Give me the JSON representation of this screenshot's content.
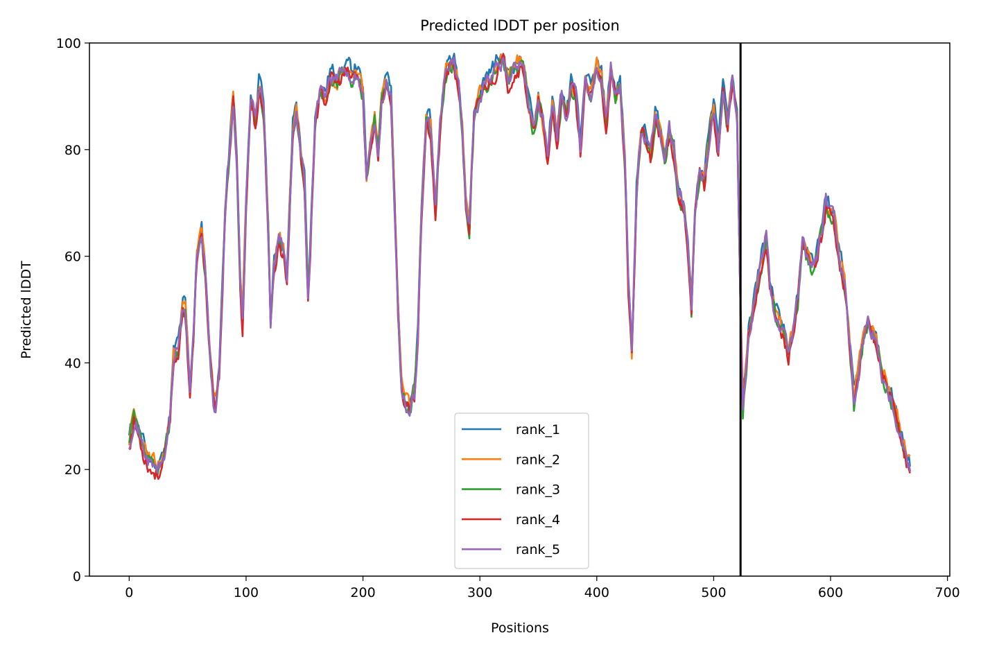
{
  "chart_data": {
    "type": "line",
    "title": "Predicted lDDT per position",
    "xlabel": "Positions",
    "ylabel": "Predicted lDDT",
    "xlim": [
      -34,
      702
    ],
    "ylim": [
      0,
      100
    ],
    "xticks": [
      0,
      100,
      200,
      300,
      400,
      500,
      600,
      700
    ],
    "yticks": [
      0,
      20,
      40,
      60,
      80,
      100
    ],
    "grid": false,
    "legend_position": "lower center",
    "vline_x": 523,
    "x_max": 668,
    "base_profile": [
      [
        0,
        25
      ],
      [
        4,
        30
      ],
      [
        8,
        27
      ],
      [
        12,
        24
      ],
      [
        18,
        21
      ],
      [
        24,
        20
      ],
      [
        30,
        22
      ],
      [
        35,
        30
      ],
      [
        38,
        41
      ],
      [
        42,
        43
      ],
      [
        46,
        50
      ],
      [
        48,
        50
      ],
      [
        52,
        35
      ],
      [
        55,
        45
      ],
      [
        58,
        60
      ],
      [
        62,
        64
      ],
      [
        65,
        58
      ],
      [
        68,
        45
      ],
      [
        72,
        33
      ],
      [
        74,
        32
      ],
      [
        77,
        38
      ],
      [
        82,
        68
      ],
      [
        86,
        80
      ],
      [
        89,
        90
      ],
      [
        92,
        78
      ],
      [
        95,
        55
      ],
      [
        97,
        47
      ],
      [
        100,
        70
      ],
      [
        104,
        90
      ],
      [
        108,
        85
      ],
      [
        111,
        92
      ],
      [
        115,
        88
      ],
      [
        119,
        65
      ],
      [
        121,
        47
      ],
      [
        124,
        58
      ],
      [
        128,
        63
      ],
      [
        132,
        61
      ],
      [
        135,
        56
      ],
      [
        140,
        84
      ],
      [
        143,
        88
      ],
      [
        147,
        79
      ],
      [
        150,
        74
      ],
      [
        153,
        52
      ],
      [
        155,
        62
      ],
      [
        159,
        85
      ],
      [
        163,
        91
      ],
      [
        168,
        90
      ],
      [
        172,
        94
      ],
      [
        178,
        93
      ],
      [
        185,
        95
      ],
      [
        190,
        94
      ],
      [
        195,
        95
      ],
      [
        200,
        90
      ],
      [
        203,
        75
      ],
      [
        206,
        80
      ],
      [
        210,
        86
      ],
      [
        213,
        80
      ],
      [
        216,
        90
      ],
      [
        220,
        93
      ],
      [
        224,
        90
      ],
      [
        227,
        70
      ],
      [
        230,
        50
      ],
      [
        233,
        36
      ],
      [
        236,
        33
      ],
      [
        240,
        31
      ],
      [
        244,
        34
      ],
      [
        247,
        45
      ],
      [
        250,
        68
      ],
      [
        254,
        86
      ],
      [
        258,
        84
      ],
      [
        262,
        68
      ],
      [
        266,
        84
      ],
      [
        270,
        94
      ],
      [
        274,
        96
      ],
      [
        278,
        96
      ],
      [
        282,
        92
      ],
      [
        285,
        84
      ],
      [
        288,
        70
      ],
      [
        291,
        66
      ],
      [
        295,
        86
      ],
      [
        300,
        90
      ],
      [
        305,
        93
      ],
      [
        310,
        94
      ],
      [
        315,
        96
      ],
      [
        320,
        97
      ],
      [
        324,
        93
      ],
      [
        328,
        95
      ],
      [
        333,
        96
      ],
      [
        338,
        95
      ],
      [
        342,
        88
      ],
      [
        346,
        83
      ],
      [
        350,
        90
      ],
      [
        354,
        85
      ],
      [
        358,
        78
      ],
      [
        362,
        88
      ],
      [
        366,
        82
      ],
      [
        370,
        90
      ],
      [
        374,
        86
      ],
      [
        378,
        92
      ],
      [
        382,
        90
      ],
      [
        386,
        80
      ],
      [
        390,
        93
      ],
      [
        395,
        90
      ],
      [
        400,
        95
      ],
      [
        404,
        93
      ],
      [
        408,
        85
      ],
      [
        412,
        95
      ],
      [
        416,
        90
      ],
      [
        420,
        92
      ],
      [
        424,
        78
      ],
      [
        427,
        55
      ],
      [
        430,
        42
      ],
      [
        434,
        72
      ],
      [
        438,
        84
      ],
      [
        442,
        82
      ],
      [
        446,
        78
      ],
      [
        450,
        86
      ],
      [
        454,
        84
      ],
      [
        458,
        78
      ],
      [
        462,
        84
      ],
      [
        466,
        80
      ],
      [
        470,
        72
      ],
      [
        474,
        70
      ],
      [
        478,
        62
      ],
      [
        481,
        50
      ],
      [
        484,
        68
      ],
      [
        488,
        76
      ],
      [
        492,
        74
      ],
      [
        496,
        82
      ],
      [
        500,
        88
      ],
      [
        504,
        80
      ],
      [
        508,
        92
      ],
      [
        512,
        84
      ],
      [
        516,
        94
      ],
      [
        520,
        86
      ],
      [
        523,
        50
      ],
      [
        525,
        32
      ],
      [
        530,
        45
      ],
      [
        535,
        52
      ],
      [
        540,
        58
      ],
      [
        545,
        64
      ],
      [
        548,
        55
      ],
      [
        552,
        50
      ],
      [
        556,
        47
      ],
      [
        560,
        45
      ],
      [
        564,
        42
      ],
      [
        568,
        46
      ],
      [
        572,
        52
      ],
      [
        576,
        62
      ],
      [
        580,
        60
      ],
      [
        584,
        58
      ],
      [
        588,
        60
      ],
      [
        592,
        64
      ],
      [
        596,
        70
      ],
      [
        600,
        68
      ],
      [
        604,
        66
      ],
      [
        608,
        60
      ],
      [
        612,
        55
      ],
      [
        616,
        45
      ],
      [
        620,
        33
      ],
      [
        624,
        38
      ],
      [
        628,
        45
      ],
      [
        632,
        48
      ],
      [
        636,
        46
      ],
      [
        640,
        43
      ],
      [
        644,
        38
      ],
      [
        648,
        36
      ],
      [
        652,
        33
      ],
      [
        656,
        30
      ],
      [
        660,
        27
      ],
      [
        664,
        23
      ],
      [
        668,
        20
      ]
    ],
    "series": [
      {
        "name": "rank_1",
        "color": "#1f77b4",
        "offset": 1.0,
        "seed": 11
      },
      {
        "name": "rank_2",
        "color": "#ff7f0e",
        "offset": 0.5,
        "seed": 23
      },
      {
        "name": "rank_3",
        "color": "#2ca02c",
        "offset": -0.5,
        "seed": 37
      },
      {
        "name": "rank_4",
        "color": "#d62728",
        "offset": -0.8,
        "seed": 53
      },
      {
        "name": "rank_5",
        "color": "#9467bd",
        "offset": 0.0,
        "seed": 71
      }
    ]
  }
}
